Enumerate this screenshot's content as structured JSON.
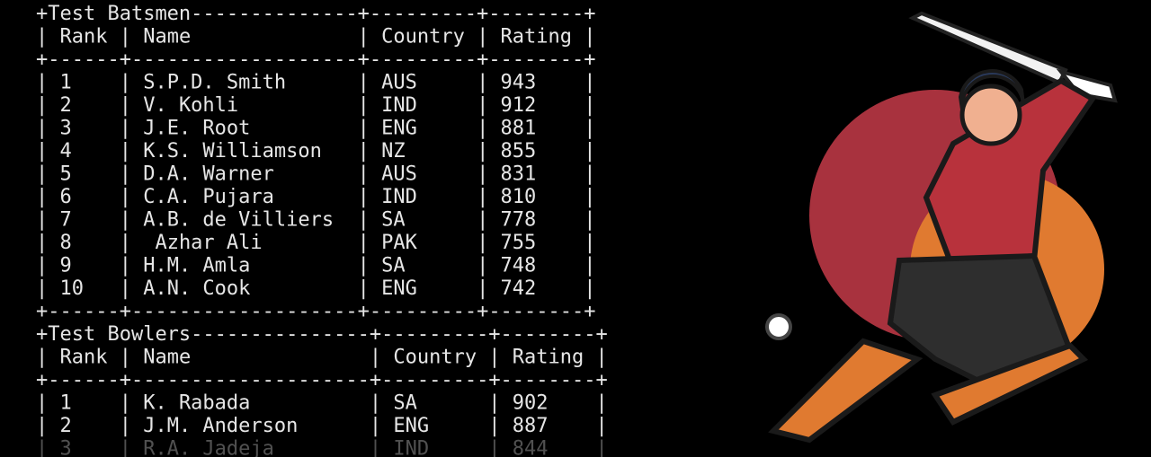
{
  "tables": [
    {
      "title": "Test Batsmen",
      "headers": [
        "Rank",
        "Name",
        "Country",
        "Rating"
      ],
      "rows": [
        [
          "1",
          "S.P.D. Smith",
          "AUS",
          "943"
        ],
        [
          "2",
          "V. Kohli",
          "IND",
          "912"
        ],
        [
          "3",
          "J.E. Root",
          "ENG",
          "881"
        ],
        [
          "4",
          "K.S. Williamson",
          "NZ",
          "855"
        ],
        [
          "5",
          "D.A. Warner",
          "AUS",
          "831"
        ],
        [
          "6",
          "C.A. Pujara",
          "IND",
          "810"
        ],
        [
          "7",
          "A.B. de Villiers",
          "SA",
          "778"
        ],
        [
          "8",
          " Azhar Ali",
          "PAK",
          "755"
        ],
        [
          "9",
          "H.M. Amla",
          "SA",
          "748"
        ],
        [
          "10",
          "A.N. Cook",
          "ENG",
          "742"
        ]
      ]
    },
    {
      "title": "Test Bowlers",
      "headers": [
        "Rank",
        "Name",
        "Country",
        "Rating"
      ],
      "rows": [
        [
          "1",
          "K. Rabada",
          "SA",
          "902"
        ],
        [
          "2",
          "J.M. Anderson",
          "ENG",
          "887"
        ],
        [
          "3",
          "R.A. Jadeja",
          "IND",
          "844"
        ]
      ]
    }
  ]
}
